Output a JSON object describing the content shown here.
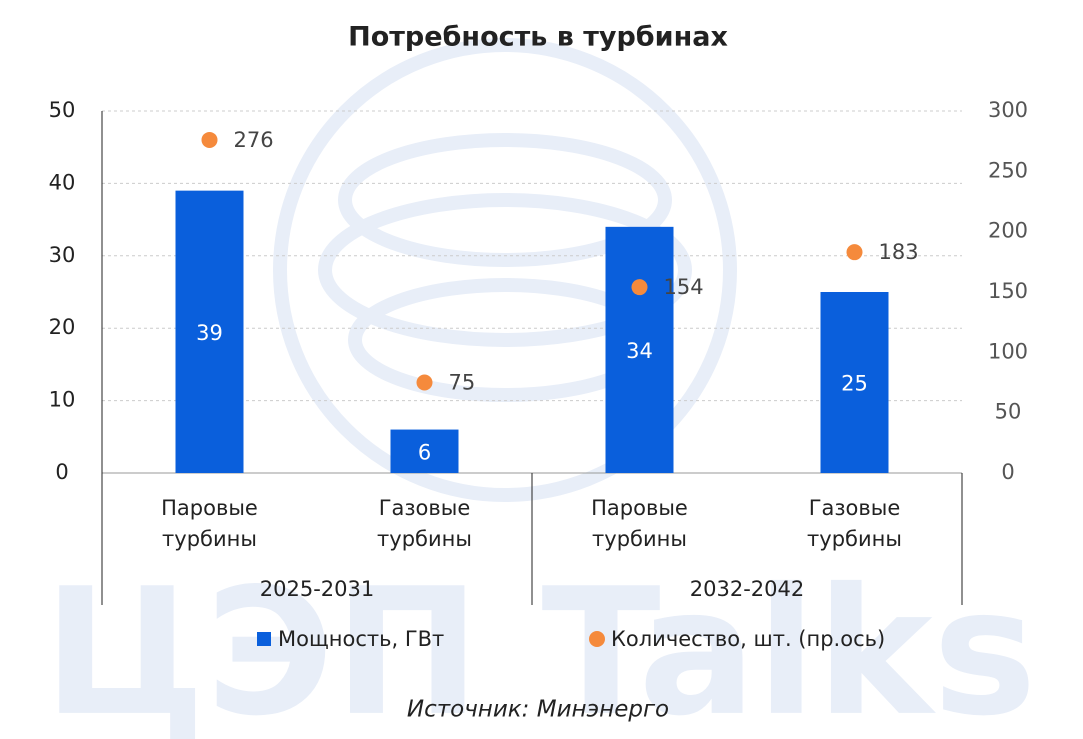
{
  "chart_data": {
    "type": "bar",
    "title": "Потребность в турбинах",
    "watermark": "ЦЭП Talks",
    "categories": [
      "Паровые турбины",
      "Газовые турбины",
      "Паровые турбины",
      "Газовые турбины"
    ],
    "group_labels": [
      "2025-2031",
      "2032-2042"
    ],
    "series": [
      {
        "name": "Мощность, ГВт",
        "color": "#0a5fdc",
        "type": "bar",
        "values": [
          39,
          6,
          34,
          25
        ]
      },
      {
        "name": "Количество, шт. (пр.ось)",
        "color": "#f58a3c",
        "type": "scatter",
        "axis": "y2",
        "values": [
          276,
          75,
          154,
          183
        ]
      }
    ],
    "ylim": [
      0,
      50
    ],
    "yticks": [
      0,
      10,
      20,
      30,
      40,
      50
    ],
    "y2lim": [
      0,
      300
    ],
    "y2ticks": [
      0,
      50,
      100,
      150,
      200,
      250,
      300
    ],
    "grid": true,
    "source": "Источник: Минэнерго"
  }
}
